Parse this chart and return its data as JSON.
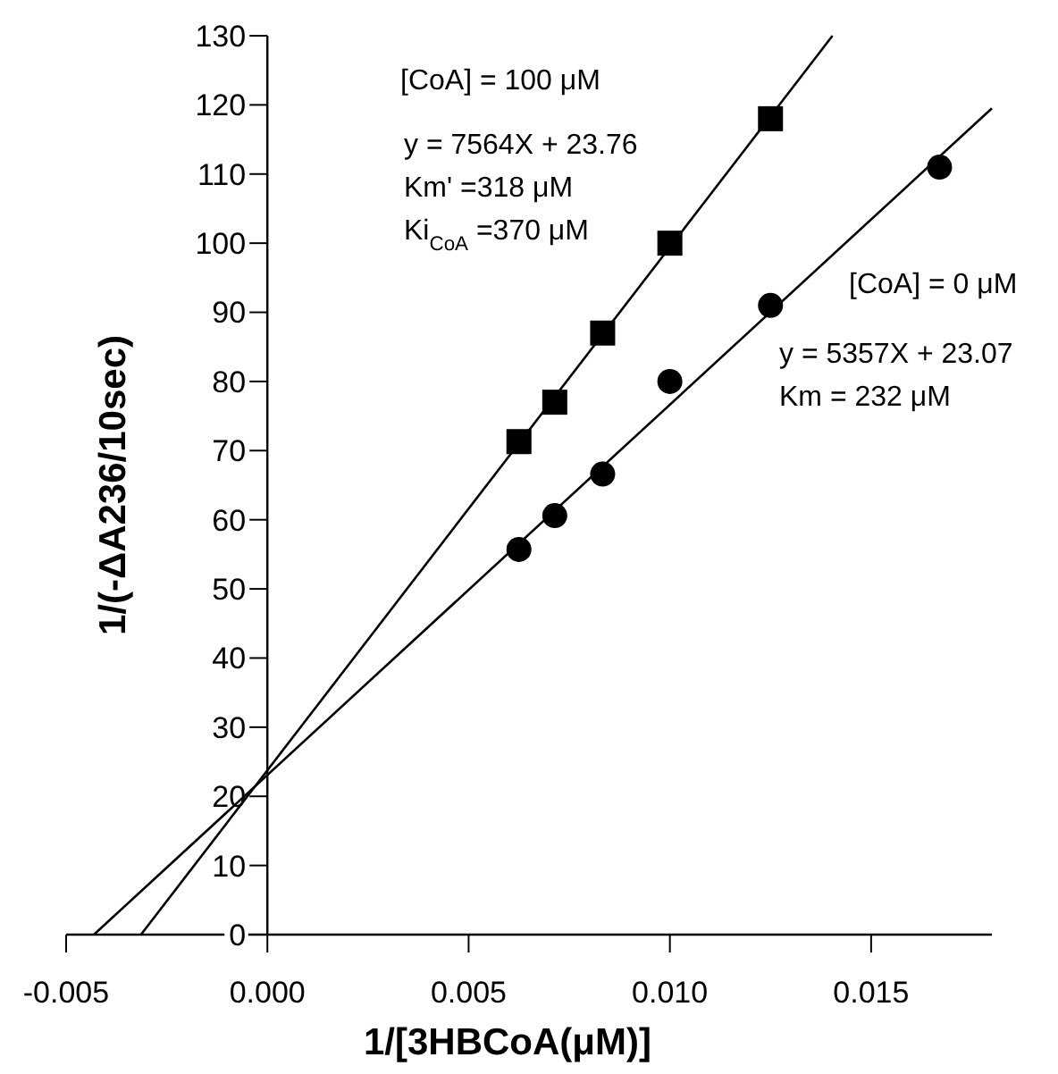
{
  "chart_data": {
    "type": "scatter",
    "xlabel": "1/[3HBCoA(μM)]",
    "ylabel": "1/(-ΔA236/10sec)",
    "xlim": [
      -0.005,
      0.018
    ],
    "ylim": [
      0,
      130
    ],
    "xticks": [
      -0.005,
      {
        "value": 0,
        "label": "0.000"
      },
      0.005,
      {
        "value": 0.01,
        "label": "0.010"
      },
      0.015
    ],
    "yticks": [
      0,
      10,
      20,
      30,
      40,
      50,
      60,
      70,
      80,
      90,
      100,
      110,
      120,
      130
    ],
    "grid": false,
    "series": [
      {
        "type": "scatter",
        "marker": "square",
        "color": "#000000",
        "x": [
          0.00625,
          0.00714,
          0.00833,
          0.01,
          0.0125
        ],
        "values": [
          71.3,
          77,
          87,
          100,
          118
        ]
      },
      {
        "type": "scatter",
        "marker": "circle",
        "color": "#000000",
        "x": [
          0.00625,
          0.00714,
          0.00833,
          0.01,
          0.0125,
          0.0167
        ],
        "values": [
          55.7,
          60.6,
          66.6,
          80,
          91,
          111
        ]
      },
      {
        "type": "line",
        "marker": "none",
        "line_style": "solid",
        "color": "#000000",
        "x": [
          -0.00314,
          0.01404
        ],
        "values": [
          0,
          130
        ]
      },
      {
        "type": "line",
        "marker": "none",
        "line_style": "solid",
        "color": "#000000",
        "x": [
          -0.00431,
          0.018
        ],
        "values": [
          0,
          119.5
        ]
      }
    ],
    "annotations": [
      "[CoA] = 100 μM",
      "y = 7564X + 23.76",
      "Km' =318 μM",
      "Ki$_{CoA}$ =370 μM",
      "[CoA] = 0 μM",
      "y = 5357X + 23.07",
      "Km = 232 μM"
    ]
  }
}
